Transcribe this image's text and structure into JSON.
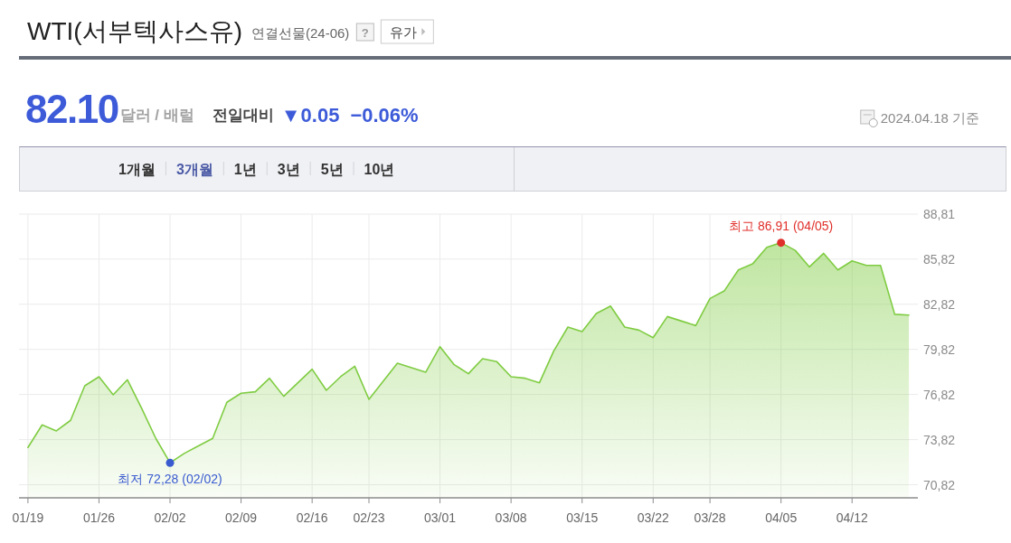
{
  "chart_data": {
    "type": "area",
    "title": "WTI(서부텍사스유)",
    "subtitle": "연결선물(24-06)",
    "categories": [
      "01/19",
      null,
      null,
      null,
      null,
      "01/26",
      null,
      null,
      null,
      null,
      "02/02",
      null,
      null,
      null,
      null,
      "02/09",
      null,
      null,
      null,
      null,
      "02/16",
      null,
      null,
      null,
      "02/23",
      null,
      null,
      null,
      null,
      "03/01",
      null,
      null,
      null,
      null,
      "03/08",
      null,
      null,
      null,
      null,
      "03/15",
      null,
      null,
      null,
      null,
      "03/22",
      null,
      null,
      null,
      "03/28",
      null,
      null,
      null,
      null,
      "04/05",
      null,
      null,
      null,
      null,
      "04/12",
      null,
      null,
      null,
      null
    ],
    "series": [
      {
        "color": "#7fcc42",
        "values": [
          73.3,
          74.8,
          74.4,
          75.1,
          77.4,
          78.0,
          76.8,
          77.8,
          75.9,
          73.9,
          72.28,
          72.9,
          73.4,
          73.9,
          76.3,
          76.9,
          77.0,
          77.9,
          76.7,
          77.6,
          78.5,
          77.1,
          78.0,
          78.7,
          76.5,
          77.7,
          78.9,
          78.6,
          78.3,
          80.0,
          78.8,
          78.2,
          79.2,
          79.0,
          78.0,
          77.9,
          77.6,
          79.7,
          81.3,
          81.0,
          82.2,
          82.7,
          81.3,
          81.1,
          80.6,
          82.0,
          81.7,
          81.4,
          83.2,
          83.7,
          85.1,
          85.5,
          86.6,
          86.91,
          86.4,
          85.3,
          86.2,
          85.1,
          85.7,
          85.4,
          85.4,
          82.15,
          82.1
        ]
      }
    ],
    "ylim": [
      69.95,
      88.81
    ],
    "yticks": [
      {
        "value": 70.82,
        "label": "70,82"
      },
      {
        "value": 73.82,
        "label": "73,82"
      },
      {
        "value": 76.82,
        "label": "76,82"
      },
      {
        "value": 79.82,
        "label": "79,82"
      },
      {
        "value": 82.82,
        "label": "82,82"
      },
      {
        "value": 85.82,
        "label": "85,82"
      },
      {
        "value": 88.81,
        "label": "88,81"
      }
    ],
    "grid": true,
    "annotations": [
      "?",
      "유가",
      "82.10",
      "달러 / 배럴",
      "전일대비",
      "▼0.05",
      "−0.06%",
      "2024.04.18 기준",
      "1개월",
      "3개월",
      "1년",
      "3년",
      "5년",
      "10년",
      {
        "text": "최저 72,28 (02/02)",
        "x": "02/02",
        "y": 72.28
      },
      {
        "text": "최고 86,91 (04/05)",
        "x": "04/05",
        "y": 86.91
      }
    ]
  }
}
